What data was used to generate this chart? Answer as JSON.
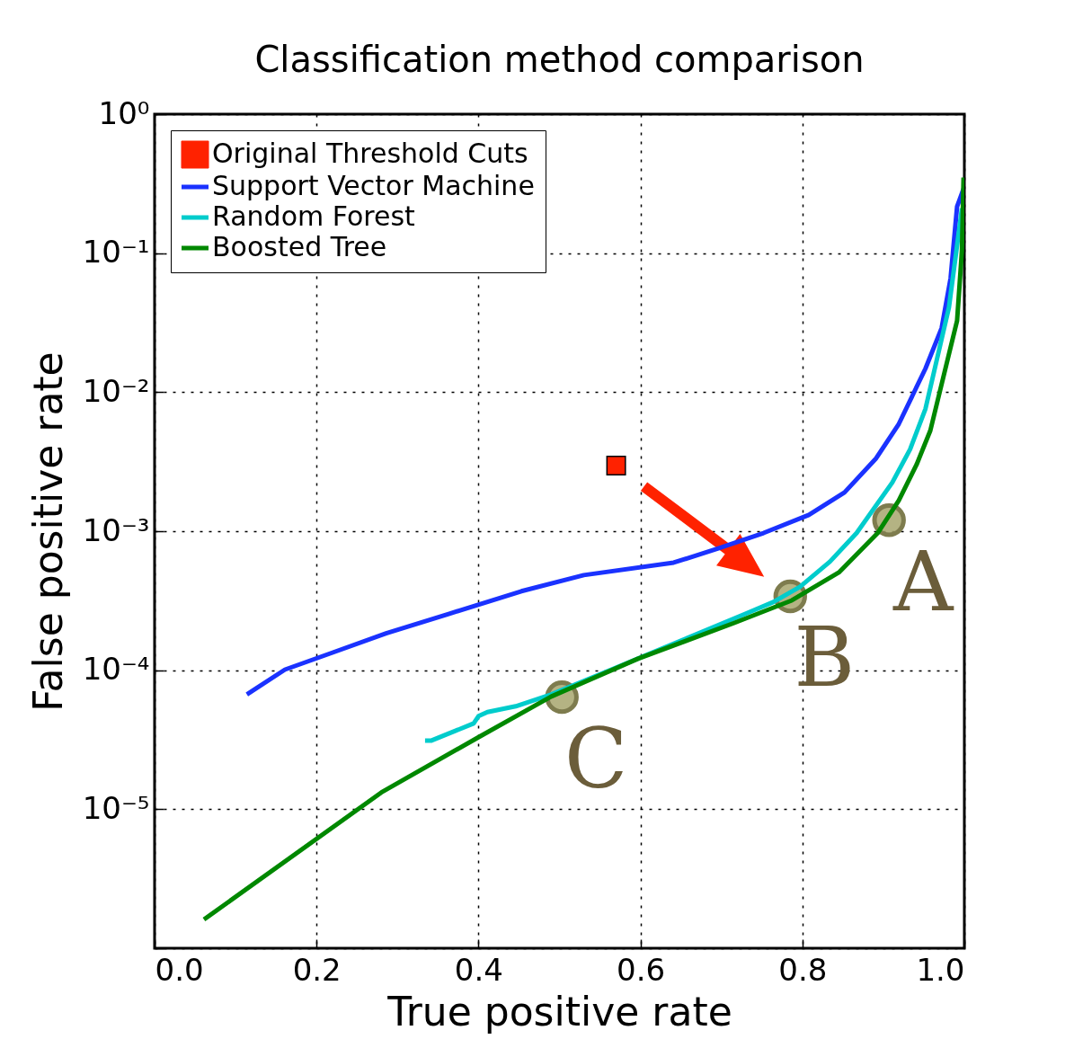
{
  "chart_data": {
    "type": "line",
    "title": "Classification method comparison",
    "xlabel": "True positive rate",
    "ylabel": "False positive rate",
    "log": "y",
    "grid": true,
    "legend": "top left",
    "xlim": [
      0,
      1
    ],
    "xticks": [
      {
        "value": 0,
        "label": "0.0"
      },
      {
        "value": 0.2,
        "label": "0.2"
      },
      {
        "value": 0.4,
        "label": "0.4"
      },
      {
        "value": 0.6,
        "label": "0.6"
      },
      {
        "value": 0.8,
        "label": "0.8"
      },
      {
        "value": 1,
        "label": "1.0"
      }
    ],
    "ylim": [
      1e-06,
      1
    ],
    "yticks": [
      {
        "value": 1e-06,
        "label": null
      },
      {
        "value": 1e-05,
        "label": "10⁻⁵"
      },
      {
        "value": 0.0001,
        "label": "10⁻⁴"
      },
      {
        "value": 0.001,
        "label": "10⁻³"
      },
      {
        "value": 0.01,
        "label": "10⁻²"
      },
      {
        "value": 0.1,
        "label": "10⁻¹"
      },
      {
        "value": 1,
        "label": "10⁰"
      }
    ],
    "series": [
      {
        "name": "Original Threshold Cuts",
        "type": "scatter",
        "marker": "square",
        "color": "#ff2200",
        "x": [
          0.57
        ],
        "values": [
          0.00297
        ]
      },
      {
        "name": "Support Vector Machine",
        "color": "#1a32ff",
        "x": [
          0.114,
          0.161,
          0.22,
          0.286,
          0.364,
          0.453,
          0.53,
          0.641,
          0.697,
          0.752,
          0.808,
          0.852,
          0.891,
          0.919,
          0.952,
          0.972,
          0.983,
          0.991,
          0.999
        ],
        "values": [
          6.7e-05,
          0.000101,
          0.000134,
          0.000184,
          0.000255,
          0.00037,
          0.000483,
          0.000594,
          0.000755,
          0.00097,
          0.00131,
          0.0019,
          0.00334,
          0.0059,
          0.0148,
          0.029,
          0.066,
          0.216,
          0.29
        ]
      },
      {
        "name": "Random Forest",
        "color": "#00cccc",
        "x": [
          0.334,
          0.342,
          0.394,
          0.4,
          0.411,
          0.446,
          0.49,
          0.564,
          0.65,
          0.73,
          0.764,
          0.797,
          0.834,
          0.867,
          0.911,
          0.933,
          0.952,
          0.981,
          0.997
        ],
        "values": [
          3.12e-05,
          3.12e-05,
          4.14e-05,
          4.67e-05,
          5e-05,
          5.5e-05,
          6.7e-05,
          0.000101,
          0.000163,
          0.000255,
          0.000309,
          0.000398,
          0.000604,
          0.00097,
          0.00224,
          0.00388,
          0.0076,
          0.0408,
          0.21
        ]
      },
      {
        "name": "Boosted Tree",
        "color": "#008800",
        "x": [
          0.061,
          0.28,
          0.399,
          0.49,
          0.597,
          0.716,
          0.787,
          0.845,
          0.893,
          0.919,
          0.941,
          0.958,
          0.991,
          0.997,
          0.999
        ],
        "values": [
          1.61e-06,
          1.32e-05,
          3.27e-05,
          6.47e-05,
          0.000121,
          0.000219,
          0.000318,
          0.000505,
          0.00097,
          0.00166,
          0.00301,
          0.0053,
          0.0326,
          0.104,
          0.35
        ]
      }
    ],
    "annotations": [
      {
        "text": "A",
        "x": 0.907,
        "y": 0.0012
      },
      {
        "text": "B",
        "x": 0.785,
        "y": 0.00034
      },
      {
        "text": "C",
        "x": 0.503,
        "y": 6.4e-05
      }
    ]
  }
}
